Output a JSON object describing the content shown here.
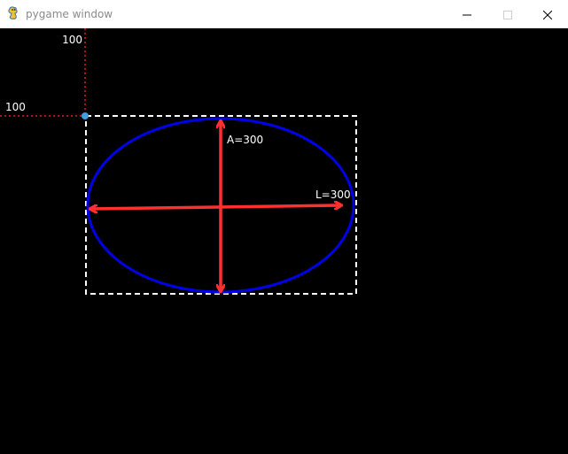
{
  "window": {
    "title": "pygame window",
    "icon": "pygame-snake-icon",
    "controls": {
      "minimize_icon": "minimize-icon",
      "maximize_icon": "maximize-icon",
      "close_icon": "close-icon"
    }
  },
  "canvas": {
    "background": "#000000",
    "guide_color": "#e02020",
    "bbox_color": "#ffffff",
    "ellipse_color": "#0000e6",
    "arrow_color": "#ff3030",
    "origin_color": "#3da0e6",
    "labels": {
      "y_offset": "100",
      "x_offset": "100",
      "height_label": "A=300",
      "width_label": "L=300"
    }
  }
}
